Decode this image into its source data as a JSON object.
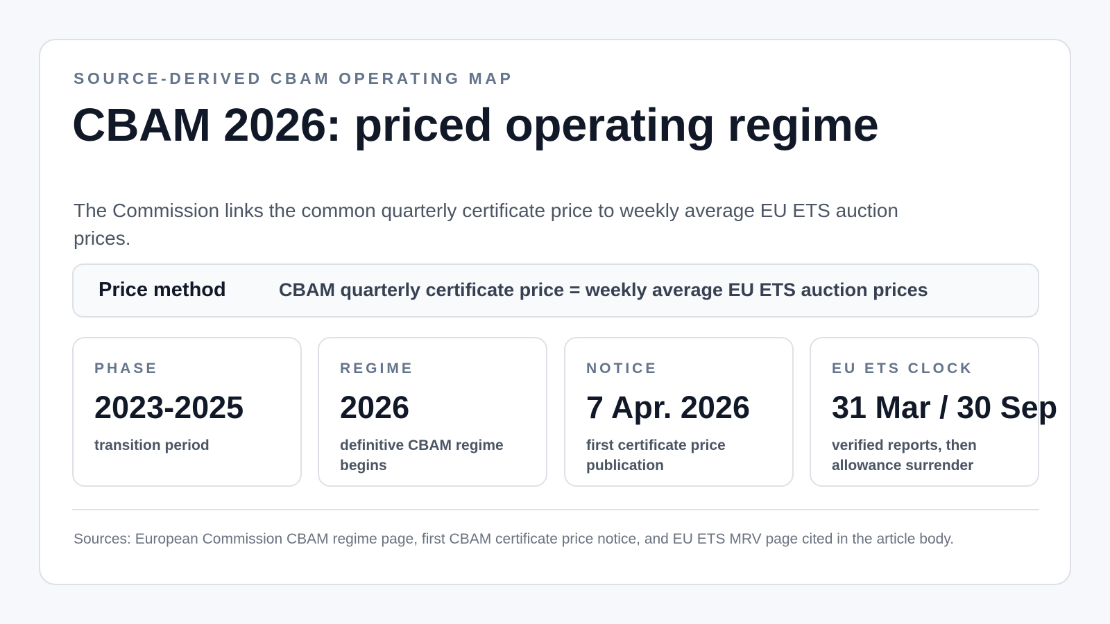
{
  "header": {
    "eyebrow": "SOURCE-DERIVED CBAM OPERATING MAP",
    "title": "CBAM 2026: priced operating regime"
  },
  "lead": "The Commission links the common quarterly certificate price to weekly average EU ETS auction prices.",
  "price_method": {
    "label": "Price method",
    "formula": "CBAM quarterly certificate price = weekly average EU ETS auction prices"
  },
  "tiles": [
    {
      "label": "PHASE",
      "value": "2023-2025",
      "description": "transition period"
    },
    {
      "label": "REGIME",
      "value": "2026",
      "description": "definitive CBAM regime begins"
    },
    {
      "label": "NOTICE",
      "value": "7 Apr. 2026",
      "description": "first certificate price publication"
    },
    {
      "label": "EU ETS CLOCK",
      "value": "31 Mar / 30 Sep",
      "description": "verified reports, then allowance surrender"
    }
  ],
  "footer": {
    "sources": "Sources: European Commission CBAM regime page, first CBAM certificate price notice, and EU ETS MRV page cited in the article body."
  }
}
